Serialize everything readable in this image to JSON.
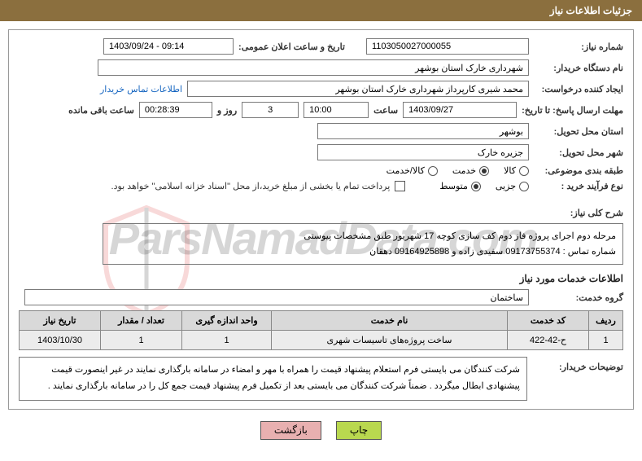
{
  "header": {
    "title": "جزئیات اطلاعات نیاز"
  },
  "fields": {
    "need_no_label": "شماره نیاز:",
    "need_no": "1103050027000055",
    "announce_label": "تاریخ و ساعت اعلان عمومی:",
    "announce": "1403/09/24 - 09:14",
    "buyer_org_label": "نام دستگاه خریدار:",
    "buyer_org": "شهرداری خارک استان بوشهر",
    "requester_label": "ایجاد کننده درخواست:",
    "requester": "محمد شیری کارپرداز شهرداری خارک استان بوشهر",
    "contact_link": "اطلاعات تماس خریدار",
    "deadline_label": "مهلت ارسال پاسخ: تا تاریخ:",
    "deadline_date": "1403/09/27",
    "time_label": "ساعت",
    "deadline_time": "10:00",
    "days_label": "روز و",
    "days": "3",
    "remaining_label": "ساعت باقی مانده",
    "remaining": "00:28:39",
    "province_label": "استان محل تحویل:",
    "province": "بوشهر",
    "city_label": "شهر محل تحویل:",
    "city": "جزیره خارک",
    "category_label": "طبقه بندی موضوعی:",
    "cat_goods": "کالا",
    "cat_service": "خدمت",
    "cat_goods_service": "کالا/خدمت",
    "process_label": "نوع فرآیند خرید :",
    "proc_minor": "جزیی",
    "proc_medium": "متوسط",
    "pay_note": "پرداخت تمام یا بخشی از مبلغ خرید،از محل \"اسناد خزانه اسلامی\" خواهد بود."
  },
  "description": {
    "label": "شرح کلی نیاز:",
    "text": "مرحله دوم اجرای پروژه فاز دوم کف سازی کوچه 17 شهریور طبق مشخصات پیوستی\nشماره تماس : 09173755374 سفیدی زاده و 09164925898 دهقان"
  },
  "services": {
    "section_title": "اطلاعات خدمات مورد نیاز",
    "group_label": "گروه خدمت:",
    "group": "ساختمان",
    "cols": {
      "row": "ردیف",
      "code": "کد خدمت",
      "name": "نام خدمت",
      "unit": "واحد اندازه گیری",
      "qty": "تعداد / مقدار",
      "date": "تاریخ نیاز"
    },
    "rows": [
      {
        "row": "1",
        "code": "ح-42-422",
        "name": "ساخت پروژه‌های تاسیسات شهری",
        "unit": "1",
        "qty": "1",
        "date": "1403/10/30"
      }
    ]
  },
  "buyer_notes": {
    "label": "توضیحات خریدار:",
    "text": "شرکت کنندگان می بایستی فرم استعلام پیشنهاد قیمت را همراه با مهر و امضاء در سامانه بارگذاری نمایند در غیر اینصورت قیمت پیشنهادی ابطال میگردد . ضمناً شرکت کنندگان می بایستی بعد از تکمیل فرم پیشنهاد قیمت جمع کل را در سامانه بارگذاری نمایند ."
  },
  "buttons": {
    "print": "چاپ",
    "back": "بازگشت"
  },
  "watermark": "ParsNamadData.com",
  "colors": {
    "header_bg": "#8b6f3e",
    "th_bg": "#d9d9d9",
    "td_bg": "#ececec",
    "btn_print_bg": "#b9d84f",
    "btn_back_bg": "#e8b0b0"
  }
}
